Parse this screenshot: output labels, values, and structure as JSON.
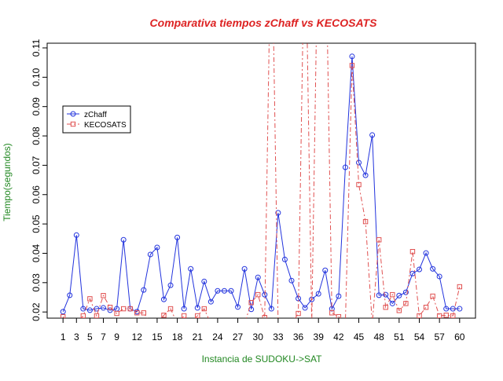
{
  "chart_data": {
    "type": "line",
    "title": "Comparativa tiempos zChaff vs KECOSATS",
    "x_label": "Instancia de SUDOKU->SAT",
    "y_label": "Tiempo(segundos)",
    "x": [
      1,
      2,
      3,
      4,
      5,
      6,
      7,
      8,
      9,
      10,
      11,
      12,
      13,
      14,
      15,
      16,
      17,
      18,
      19,
      20,
      21,
      22,
      23,
      24,
      25,
      26,
      27,
      28,
      29,
      30,
      31,
      32,
      33,
      34,
      35,
      36,
      37,
      38,
      39,
      40,
      41,
      42,
      43,
      44,
      45,
      46,
      47,
      48,
      49,
      50,
      51,
      52,
      53,
      54,
      55,
      56,
      57,
      58,
      59,
      60
    ],
    "xlim": [
      -1.36,
      62.36
    ],
    "xticks": [
      1,
      3,
      5,
      7,
      9,
      12,
      15,
      18,
      21,
      24,
      27,
      30,
      33,
      36,
      39,
      42,
      45,
      48,
      51,
      54,
      57,
      60
    ],
    "ylim": [
      0.0179,
      0.1116
    ],
    "yticks": [
      0.02,
      0.03,
      0.04,
      0.05,
      0.06,
      0.07,
      0.08,
      0.09,
      {
        "value": 0.1,
        "label": "0.10"
      },
      0.11
    ],
    "legend": "top-left",
    "series": [
      {
        "name": "zChaff",
        "color": "#2233dd",
        "values": [
          0.0201,
          0.0257,
          0.0462,
          0.0211,
          0.0206,
          0.0211,
          0.0214,
          0.0206,
          0.0211,
          0.0446,
          0.0211,
          0.0201,
          0.0275,
          0.0396,
          0.042,
          0.0243,
          0.0291,
          0.0454,
          0.0211,
          0.0347,
          0.0214,
          0.0304,
          0.0235,
          0.0272,
          0.0272,
          0.0272,
          0.0217,
          0.0347,
          0.0209,
          0.0318,
          0.0259,
          0.0211,
          0.0538,
          0.0379,
          0.0307,
          0.0246,
          0.0214,
          0.0243,
          0.0262,
          0.0342,
          0.0211,
          0.0254,
          0.0693,
          0.1071,
          0.0709,
          0.0666,
          0.0803,
          0.0257,
          0.0259,
          0.0229,
          0.0256,
          0.0267,
          0.0331,
          0.0345,
          0.0401,
          0.0347,
          0.0321,
          0.0211,
          0.0211,
          0.0211
        ]
      },
      {
        "name": "KECOSATS",
        "color": "#e05050",
        "values": [
          0.0184,
          0.016,
          0.016,
          0.0187,
          0.0245,
          0.0187,
          0.0256,
          0.0216,
          0.0195,
          0.0211,
          0.0211,
          0.0197,
          0.0197,
          0.016,
          0.016,
          0.0189,
          0.0211,
          0.016,
          0.0187,
          0.016,
          0.0187,
          0.0211,
          0.016,
          0.016,
          0.016,
          0.016,
          0.016,
          0.016,
          0.0232,
          0.0259,
          0.0181,
          0.16,
          0.016,
          0.016,
          0.016,
          0.0195,
          0.16,
          0.016,
          0.16,
          0.16,
          0.0197,
          0.0184,
          0.016,
          0.104,
          0.0634,
          0.0508,
          0.016,
          0.0446,
          0.0216,
          0.0259,
          0.0205,
          0.0229,
          0.0406,
          0.0187,
          0.0216,
          0.0254,
          0.0187,
          0.0189,
          0.0187,
          0.0286
        ]
      }
    ]
  }
}
